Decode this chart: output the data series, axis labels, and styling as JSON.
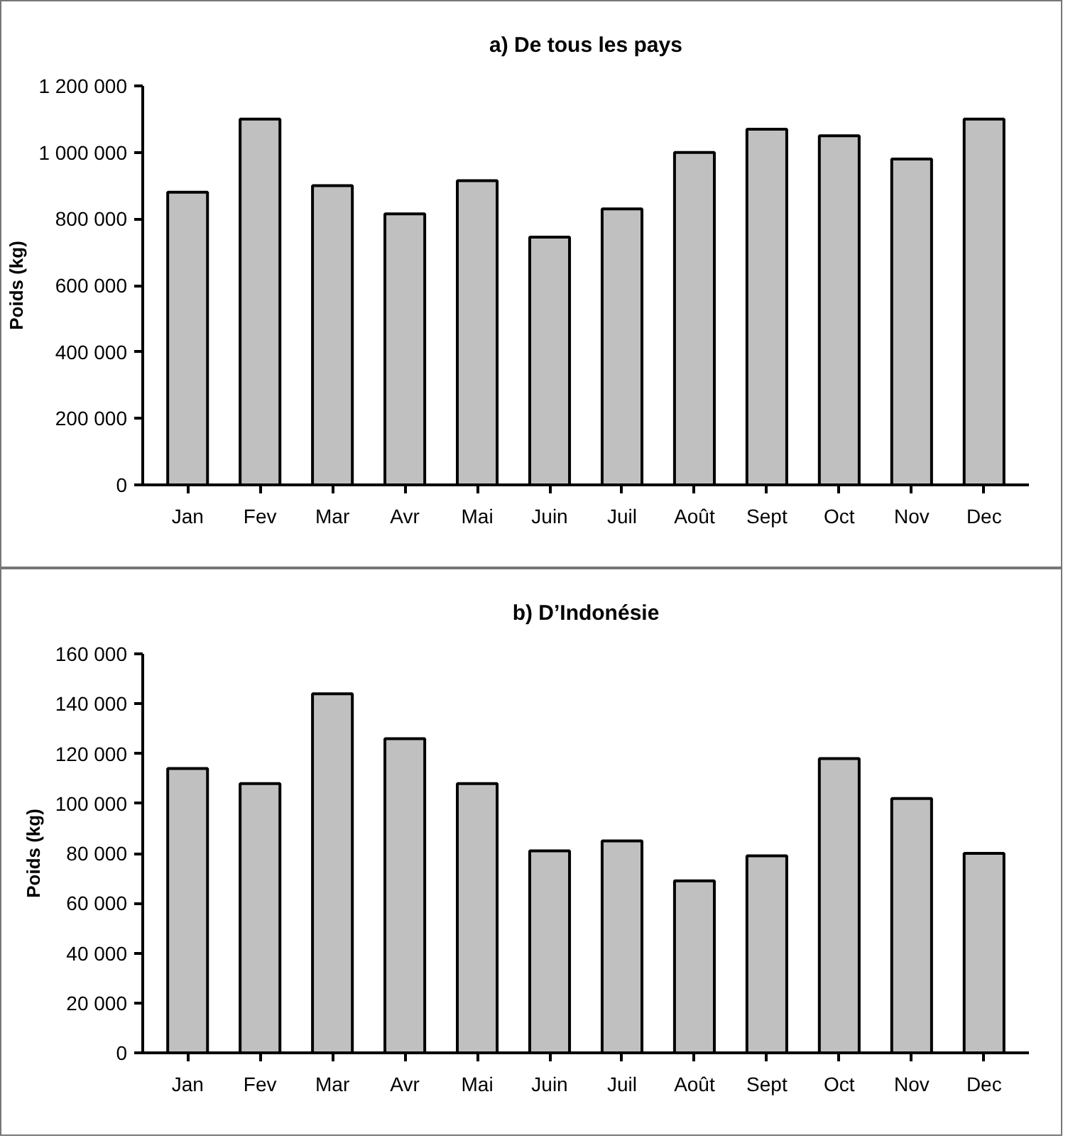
{
  "chart_data": [
    {
      "type": "bar",
      "title": "a) De tous les pays",
      "ylabel": "Poids (kg)",
      "categories": [
        "Jan",
        "Fev",
        "Mar",
        "Avr",
        "Mai",
        "Juin",
        "Juil",
        "Août",
        "Sept",
        "Oct",
        "Nov",
        "Dec"
      ],
      "values": [
        880000,
        1100000,
        900000,
        815000,
        915000,
        745000,
        830000,
        1000000,
        1070000,
        1050000,
        980000,
        1100000
      ],
      "color": "#c0c0c0",
      "ylim": [
        0,
        1200000
      ],
      "yticks": [
        0,
        {
          "value": 200000,
          "label": "200 000"
        },
        {
          "value": 400000,
          "label": "400 000"
        },
        {
          "value": 600000,
          "label": "600 000"
        },
        {
          "value": 800000,
          "label": "800 000"
        },
        {
          "value": 1000000,
          "label": "1 000 000"
        },
        {
          "value": 1200000,
          "label": "1 200 000"
        }
      ],
      "grid": false
    },
    {
      "type": "bar",
      "title": "b) D’Indonésie",
      "ylabel": "Poids (kg)",
      "categories": [
        "Jan",
        "Fev",
        "Mar",
        "Avr",
        "Mai",
        "Juin",
        "Juil",
        "Août",
        "Sept",
        "Oct",
        "Nov",
        "Dec"
      ],
      "values": [
        114000,
        108000,
        144000,
        126000,
        108000,
        81000,
        85000,
        69000,
        79000,
        118000,
        102000,
        80000
      ],
      "color": "#c0c0c0",
      "ylim": [
        0,
        160000
      ],
      "yticks": [
        0,
        {
          "value": 20000,
          "label": "20 000"
        },
        {
          "value": 40000,
          "label": "40 000"
        },
        {
          "value": 60000,
          "label": "60 000"
        },
        {
          "value": 80000,
          "label": "80 000"
        },
        {
          "value": 100000,
          "label": "100 000"
        },
        {
          "value": 120000,
          "label": "120 000"
        },
        {
          "value": 140000,
          "label": "140 000"
        },
        {
          "value": 160000,
          "label": "160 000"
        }
      ],
      "grid": false
    }
  ]
}
